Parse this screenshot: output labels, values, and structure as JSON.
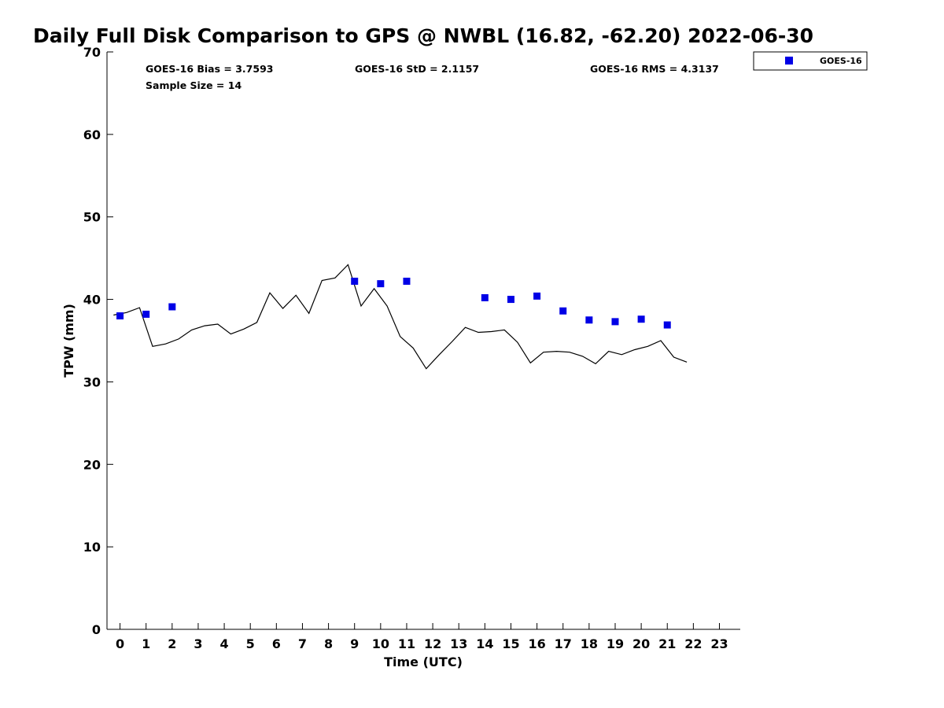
{
  "chart_data": {
    "type": "scatter",
    "title": "Daily Full Disk Comparison to GPS @ NWBL (16.82, -62.20) 2022-06-30",
    "xlabel": "Time (UTC)",
    "ylabel": "TPW (mm)",
    "xlim": [
      -0.5,
      23.8
    ],
    "ylim": [
      0,
      70
    ],
    "xticks": [
      0,
      1,
      2,
      3,
      4,
      5,
      6,
      7,
      8,
      9,
      10,
      11,
      12,
      13,
      14,
      15,
      16,
      17,
      18,
      19,
      20,
      21,
      22,
      23
    ],
    "yticks": [
      0,
      10,
      20,
      30,
      40,
      50,
      60,
      70
    ],
    "grid": false,
    "legend_position": "top-right outside plot",
    "stats": {
      "bias": "GOES-16 Bias = 3.7593",
      "std": "GOES-16 StD = 2.1157",
      "rms": "GOES-16 RMS = 4.3137",
      "sample_size": "Sample Size = 14"
    },
    "series": [
      {
        "name": "GOES-16",
        "kind": "scatter",
        "marker": "square",
        "color": "#0000e6",
        "x": [
          0,
          1,
          2,
          9,
          10,
          11,
          14,
          15,
          16,
          17,
          18,
          19,
          20,
          21
        ],
        "y": [
          38.0,
          38.2,
          39.1,
          42.2,
          41.9,
          42.2,
          40.2,
          40.0,
          40.4,
          38.6,
          37.5,
          37.3,
          37.6,
          36.9
        ]
      },
      {
        "kind": "line",
        "color": "#000000",
        "x": [
          -0.25,
          0.25,
          0.75,
          1.25,
          1.75,
          2.25,
          2.75,
          3.25,
          3.75,
          4.25,
          4.75,
          5.25,
          5.75,
          6.25,
          6.75,
          7.25,
          7.75,
          8.25,
          8.75,
          9.25,
          9.75,
          10.25,
          10.75,
          11.25,
          11.75,
          12.25,
          12.75,
          13.25,
          13.75,
          14.25,
          14.75,
          15.25,
          15.75,
          16.25,
          16.75,
          17.25,
          17.75,
          18.25,
          18.75,
          19.25,
          19.75,
          20.25,
          20.75,
          21.25,
          21.75
        ],
        "y": [
          38.1,
          38.4,
          39.0,
          34.3,
          34.6,
          35.2,
          36.3,
          36.8,
          37.0,
          35.8,
          36.4,
          37.2,
          40.8,
          38.9,
          40.5,
          38.3,
          42.3,
          42.6,
          44.2,
          39.2,
          41.3,
          39.2,
          35.5,
          34.1,
          31.6,
          33.3,
          34.9,
          36.6,
          36.0,
          36.1,
          36.3,
          34.8,
          32.3,
          33.6,
          33.7,
          33.6,
          33.1,
          32.2,
          33.7,
          33.3,
          33.9,
          34.3,
          35.0,
          33.0,
          32.4
        ]
      }
    ]
  }
}
